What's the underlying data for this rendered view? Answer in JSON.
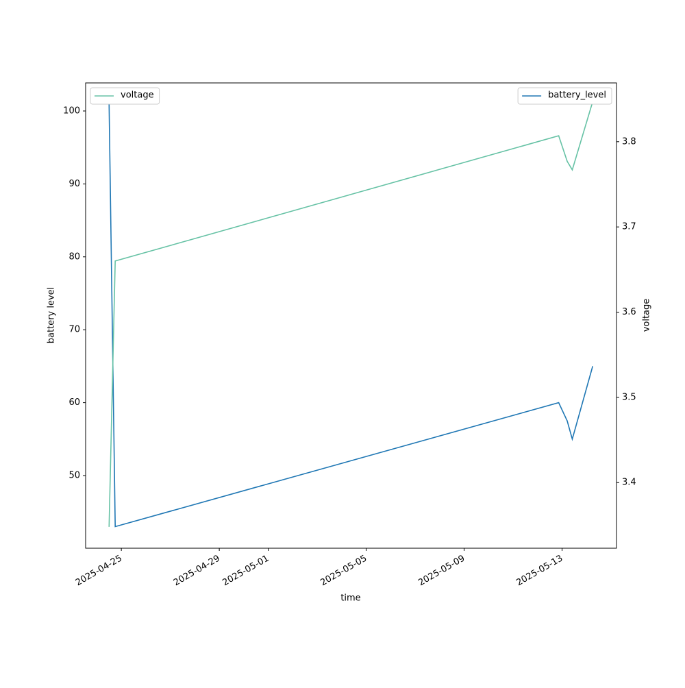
{
  "chart_data": {
    "type": "line",
    "xlabel": "time",
    "ylabel": "battery level",
    "y2label": "voltage",
    "x": [
      "2025-04-24T12:00",
      "2025-04-24T18:00",
      "2025-05-12T20:40",
      "2025-05-13T05:00",
      "2025-05-13T10:00",
      "2025-05-14T06:00"
    ],
    "xlim": [
      "2025-04-23T13:00",
      "2025-05-15T05:20"
    ],
    "xticks": [
      "2025-04-25",
      "2025-04-29",
      "2025-05-01",
      "2025-05-05",
      "2025-05-09",
      "2025-05-13"
    ],
    "ylim": [
      40.04,
      103.85
    ],
    "yticks": [
      50,
      60,
      70,
      80,
      90,
      100
    ],
    "y2lim": [
      3.323,
      3.869
    ],
    "y2ticks": [
      3.4,
      3.5,
      3.6,
      3.7,
      3.8
    ],
    "series": [
      {
        "name": "battery_level",
        "color": "#1f77b4",
        "axis": "y",
        "legend": "upper right",
        "values": [
          101,
          43,
          60,
          57.5,
          55,
          65
        ]
      },
      {
        "name": "voltage",
        "color": "#66c2a5",
        "axis": "y2",
        "legend": "upper left",
        "values": [
          3.348,
          3.66,
          3.807,
          3.777,
          3.767,
          3.847
        ]
      }
    ]
  }
}
